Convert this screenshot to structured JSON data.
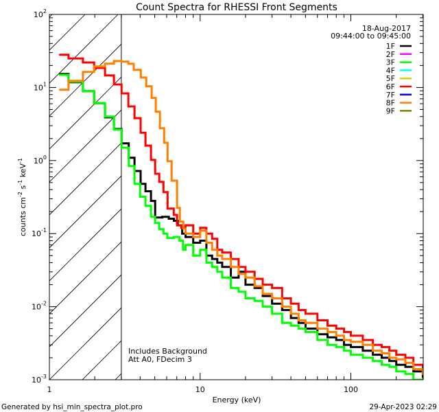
{
  "chart_data": {
    "type": "line",
    "title": "Count Spectra for RHESSI Front Segments",
    "xlabel": "Energy (keV)",
    "ylabel": "counts cm-2 s-1 keV-1",
    "xscale": "log",
    "yscale": "log",
    "xlim": [
      1,
      302
    ],
    "ylim": [
      0.001,
      100
    ],
    "x_tick_labels": [
      {
        "base": "1",
        "exp": ""
      },
      {
        "base": "10",
        "exp": ""
      },
      {
        "base": "100",
        "exp": ""
      }
    ],
    "y_tick_labels": [
      {
        "base": "10",
        "exp": "2"
      },
      {
        "base": "10",
        "exp": "1"
      },
      {
        "base": "10",
        "exp": "0"
      },
      {
        "base": "10",
        "exp": "-1"
      },
      {
        "base": "10",
        "exp": "-2"
      },
      {
        "base": "10",
        "exp": "-3"
      }
    ],
    "excluded_region_keV": [
      1,
      3
    ],
    "legend_header": {
      "date": "18-Aug-2017",
      "time_range": "09:44:00 to 09:45:00"
    },
    "legend_position": "top-right",
    "legend": [
      {
        "name": "1F",
        "color": "#000000"
      },
      {
        "name": "2F",
        "color": "#ff00ff"
      },
      {
        "name": "3F",
        "color": "#00ff00"
      },
      {
        "name": "4F",
        "color": "#00ffff"
      },
      {
        "name": "5F",
        "color": "#d4d400"
      },
      {
        "name": "6F",
        "color": "#ff0000"
      },
      {
        "name": "7F",
        "color": "#0000ff"
      },
      {
        "name": "8F",
        "color": "#ff8000"
      },
      {
        "name": "9F",
        "color": "#808000"
      }
    ],
    "annotations": [
      "Includes Background",
      "Att A0, FDecim 3"
    ],
    "series": [
      {
        "name": "1F",
        "color": "#000000",
        "points": [
          [
            1.16,
            15.3
          ],
          [
            1.34,
            11.8
          ],
          [
            1.67,
            8.9
          ],
          [
            1.98,
            6.1
          ],
          [
            2.34,
            3.9
          ],
          [
            2.68,
            2.7
          ],
          [
            3.01,
            1.72
          ],
          [
            3.36,
            1.09
          ],
          [
            3.67,
            0.72
          ],
          [
            4.03,
            0.48
          ],
          [
            4.34,
            0.38
          ],
          [
            4.72,
            0.28
          ],
          [
            5.03,
            0.166
          ],
          [
            5.6,
            0.17
          ],
          [
            6.2,
            0.16
          ],
          [
            6.7,
            0.15
          ],
          [
            7.1,
            0.13
          ],
          [
            7.6,
            0.1
          ],
          [
            8,
            0.09
          ],
          [
            9,
            0.075
          ],
          [
            10,
            0.08
          ],
          [
            11,
            0.05
          ],
          [
            12,
            0.045
          ],
          [
            13,
            0.04
          ],
          [
            14,
            0.035
          ],
          [
            16,
            0.025
          ],
          [
            18,
            0.03
          ],
          [
            20,
            0.02
          ],
          [
            23,
            0.018
          ],
          [
            26,
            0.014
          ],
          [
            30,
            0.011
          ],
          [
            35,
            0.009
          ],
          [
            40,
            0.007
          ],
          [
            45,
            0.006
          ],
          [
            50,
            0.005
          ],
          [
            60,
            0.0042
          ],
          [
            70,
            0.0038
          ],
          [
            80,
            0.0035
          ],
          [
            90,
            0.003
          ],
          [
            100,
            0.0028
          ],
          [
            120,
            0.0025
          ],
          [
            140,
            0.0022
          ],
          [
            160,
            0.002
          ],
          [
            180,
            0.0018
          ],
          [
            200,
            0.0016
          ],
          [
            230,
            0.0015
          ],
          [
            260,
            0.0013
          ],
          [
            300,
            0.0011
          ]
        ]
      },
      {
        "name": "3F",
        "color": "#00ff00",
        "points": [
          [
            1.16,
            14.9
          ],
          [
            1.34,
            12.0
          ],
          [
            1.67,
            8.9
          ],
          [
            1.98,
            6.1
          ],
          [
            2.34,
            4.0
          ],
          [
            2.68,
            2.65
          ],
          [
            3.01,
            1.5
          ],
          [
            3.36,
            0.84
          ],
          [
            3.67,
            0.48
          ],
          [
            4.0,
            0.32
          ],
          [
            4.34,
            0.24
          ],
          [
            4.72,
            0.17
          ],
          [
            5.03,
            0.14
          ],
          [
            5.36,
            0.115
          ],
          [
            5.71,
            0.1
          ],
          [
            6.05,
            0.087
          ],
          [
            6.7,
            0.09
          ],
          [
            7.3,
            0.08
          ],
          [
            7.7,
            0.06
          ],
          [
            8,
            0.07
          ],
          [
            9,
            0.05
          ],
          [
            10,
            0.06
          ],
          [
            11,
            0.04
          ],
          [
            12,
            0.035
          ],
          [
            13,
            0.03
          ],
          [
            14,
            0.025
          ],
          [
            16,
            0.018
          ],
          [
            18,
            0.016
          ],
          [
            20,
            0.013
          ],
          [
            23,
            0.012
          ],
          [
            26,
            0.01
          ],
          [
            30,
            0.008
          ],
          [
            35,
            0.006
          ],
          [
            40,
            0.0055
          ],
          [
            45,
            0.005
          ],
          [
            50,
            0.0045
          ],
          [
            60,
            0.0035
          ],
          [
            70,
            0.003
          ],
          [
            80,
            0.0028
          ],
          [
            90,
            0.0025
          ],
          [
            100,
            0.0022
          ],
          [
            120,
            0.002
          ],
          [
            140,
            0.0018
          ],
          [
            160,
            0.0016
          ],
          [
            180,
            0.0015
          ],
          [
            200,
            0.0013
          ],
          [
            230,
            0.0012
          ],
          [
            260,
            0.001
          ],
          [
            300,
            0.0009
          ]
        ]
      },
      {
        "name": "6F",
        "color": "#ff0000",
        "points": [
          [
            1.16,
            28
          ],
          [
            1.34,
            25
          ],
          [
            1.67,
            22
          ],
          [
            1.98,
            18.5
          ],
          [
            2.34,
            14.6
          ],
          [
            2.68,
            11
          ],
          [
            3.01,
            8.3
          ],
          [
            3.34,
            5.5
          ],
          [
            3.67,
            3.8
          ],
          [
            4.03,
            2.4
          ],
          [
            4.34,
            1.6
          ],
          [
            4.72,
            1.02
          ],
          [
            5.03,
            0.66
          ],
          [
            5.36,
            0.51
          ],
          [
            5.71,
            0.37
          ],
          [
            6.08,
            0.22
          ],
          [
            6.68,
            0.18
          ],
          [
            7.03,
            0.13
          ],
          [
            7.5,
            0.12
          ],
          [
            8,
            0.13
          ],
          [
            9,
            0.1
          ],
          [
            10,
            0.12
          ],
          [
            11,
            0.1
          ],
          [
            12,
            0.085
          ],
          [
            13,
            0.06
          ],
          [
            14,
            0.055
          ],
          [
            16,
            0.045
          ],
          [
            18,
            0.035
          ],
          [
            20,
            0.03
          ],
          [
            23,
            0.024
          ],
          [
            26,
            0.02
          ],
          [
            30,
            0.018
          ],
          [
            35,
            0.013
          ],
          [
            40,
            0.011
          ],
          [
            45,
            0.009
          ],
          [
            50,
            0.008
          ],
          [
            60,
            0.0065
          ],
          [
            70,
            0.0055
          ],
          [
            80,
            0.005
          ],
          [
            90,
            0.0045
          ],
          [
            100,
            0.004
          ],
          [
            120,
            0.0035
          ],
          [
            140,
            0.003
          ],
          [
            160,
            0.0028
          ],
          [
            180,
            0.0025
          ],
          [
            200,
            0.0022
          ],
          [
            230,
            0.002
          ],
          [
            260,
            0.0016
          ],
          [
            300,
            0.0013
          ]
        ]
      },
      {
        "name": "8F",
        "color": "#ff8000",
        "points": [
          [
            1.16,
            9.3
          ],
          [
            1.34,
            12.3
          ],
          [
            1.67,
            16.3
          ],
          [
            1.98,
            19.4
          ],
          [
            2.34,
            21.2
          ],
          [
            2.68,
            23
          ],
          [
            3.01,
            22.6
          ],
          [
            3.34,
            21.1
          ],
          [
            3.63,
            17.4
          ],
          [
            4.04,
            13.7
          ],
          [
            4.39,
            10.4
          ],
          [
            4.77,
            7.2
          ],
          [
            5.08,
            4.65
          ],
          [
            5.41,
            2.77
          ],
          [
            5.77,
            1.75
          ],
          [
            6.08,
            0.98
          ],
          [
            6.47,
            0.53
          ],
          [
            7.03,
            0.225
          ],
          [
            7.34,
            0.146
          ],
          [
            7.73,
            0.117
          ],
          [
            8,
            0.1
          ],
          [
            9,
            0.09
          ],
          [
            10,
            0.11
          ],
          [
            11,
            0.075
          ],
          [
            12,
            0.06
          ],
          [
            13,
            0.05
          ],
          [
            14,
            0.045
          ],
          [
            16,
            0.035
          ],
          [
            18,
            0.028
          ],
          [
            20,
            0.025
          ],
          [
            23,
            0.019
          ],
          [
            26,
            0.015
          ],
          [
            30,
            0.013
          ],
          [
            35,
            0.01
          ],
          [
            40,
            0.008
          ],
          [
            45,
            0.0065
          ],
          [
            50,
            0.006
          ],
          [
            60,
            0.005
          ],
          [
            70,
            0.0045
          ],
          [
            80,
            0.004
          ],
          [
            90,
            0.0035
          ],
          [
            100,
            0.0033
          ],
          [
            120,
            0.003
          ],
          [
            140,
            0.0025
          ],
          [
            160,
            0.0023
          ],
          [
            180,
            0.002
          ],
          [
            200,
            0.0019
          ],
          [
            230,
            0.0017
          ],
          [
            260,
            0.0014
          ],
          [
            300,
            0.0012
          ]
        ]
      }
    ]
  },
  "footer": {
    "generated_by": "Generated by hsi_min_spectra_plot.pro",
    "timestamp": "29-Apr-2023 02:29"
  }
}
